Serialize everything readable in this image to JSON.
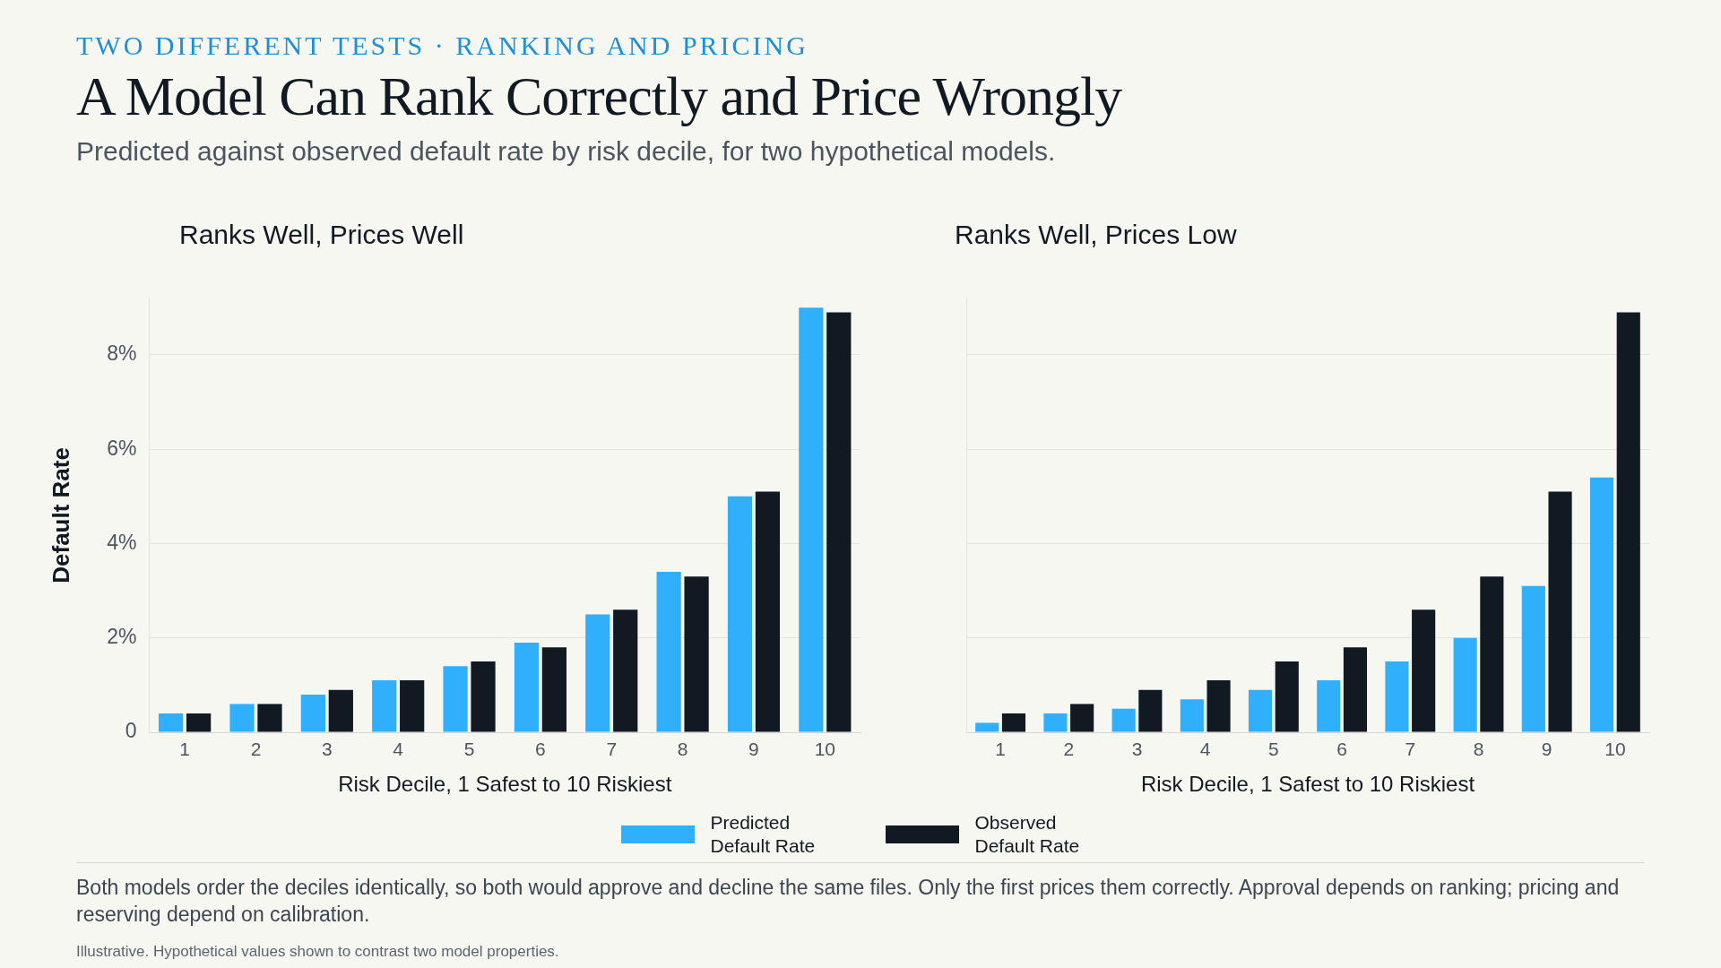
{
  "chart_data": [
    {
      "type": "other",
      "title": "A Model Can Rank Correctly and Price Wrongly",
      "subtitle": "Predicted against observed default rate by risk decile, for two hypothetical models.",
      "annotations": [
        "TWO DIFFERENT TESTS · RANKING AND PRICING",
        "Both models order the deciles identically, so both would approve and decline the same files. Only the first prices them correctly. Approval depends on ranking; pricing and reserving depend on calibration.",
        "Illustrative. Hypothetical values shown to contrast two model properties."
      ]
    },
    {
      "type": "bar",
      "title": "Ranks Well, Prices Well",
      "xlabel": "Risk Decile, 1 Safest to 10 Riskiest",
      "ylabel": "Default Rate",
      "categories": [
        "1",
        "2",
        "3",
        "4",
        "5",
        "6",
        "7",
        "8",
        "9",
        "10"
      ],
      "ylim": [
        0,
        9.2
      ],
      "yticks": [
        0,
        {
          "value": 2,
          "label": "2%"
        },
        {
          "value": 4,
          "label": "4%"
        },
        {
          "value": 6,
          "label": "6%"
        },
        {
          "value": 8,
          "label": "8%"
        }
      ],
      "grid": "y",
      "legend": "bottom",
      "series": [
        {
          "name": "Predicted Default Rate",
          "color": "#30b0fc",
          "values": [
            0.4,
            0.6,
            0.8,
            1.1,
            1.4,
            1.9,
            2.5,
            3.4,
            5.0,
            9.0
          ]
        },
        {
          "name": "Observed Default Rate",
          "color": "#111a22",
          "values": [
            0.4,
            0.6,
            0.9,
            1.1,
            1.5,
            1.8,
            2.6,
            3.3,
            5.1,
            8.9
          ]
        }
      ]
    },
    {
      "type": "bar",
      "title": "Ranks Well, Prices Low",
      "xlabel": "Risk Decile, 1 Safest to 10 Riskiest",
      "categories": [
        "1",
        "2",
        "3",
        "4",
        "5",
        "6",
        "7",
        "8",
        "9",
        "10"
      ],
      "ylim": [
        0,
        9.2
      ],
      "yticks": [
        {
          "value": 0,
          "label": null
        },
        {
          "value": 2,
          "label": null
        },
        {
          "value": 4,
          "label": null
        },
        {
          "value": 6,
          "label": null
        },
        {
          "value": 8,
          "label": null
        }
      ],
      "grid": "y",
      "tick_labels": "x",
      "series": [
        {
          "color": "#30b0fc",
          "values": [
            0.2,
            0.4,
            0.5,
            0.7,
            0.9,
            1.1,
            1.5,
            2.0,
            3.1,
            5.4
          ]
        },
        {
          "color": "#111a22",
          "values": [
            0.4,
            0.6,
            0.9,
            1.1,
            1.5,
            1.8,
            2.6,
            3.3,
            5.1,
            8.9
          ]
        }
      ]
    }
  ]
}
